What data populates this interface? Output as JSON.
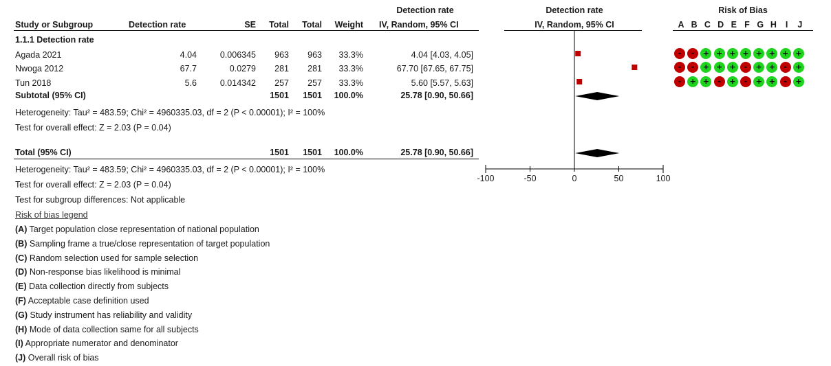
{
  "header": {
    "left_col": "Study or Subgroup",
    "col_rate": "Detection rate",
    "col_se": "SE",
    "col_total1": "Total",
    "col_total2": "Total",
    "col_weight": "Weight",
    "col_effect_top": "Detection rate",
    "col_effect_bottom": "IV, Random, 95% CI",
    "plot_top": "Detection rate",
    "plot_bottom": "IV, Random, 95% CI",
    "rob_title": "Risk of Bias",
    "rob_letters": [
      "A",
      "B",
      "C",
      "D",
      "E",
      "F",
      "G",
      "H",
      "I",
      "J"
    ]
  },
  "subgroup_title": "1.1.1 Detection rate",
  "studies": [
    {
      "name": "Agada 2021",
      "rate": "4.04",
      "se": "0.006345",
      "total1": "963",
      "total2": "963",
      "weight": "33.3%",
      "ci": "4.04 [4.03, 4.05]",
      "rob": [
        "-",
        "-",
        "+",
        "+",
        "+",
        "+",
        "+",
        "+",
        "+",
        "+"
      ]
    },
    {
      "name": "Nwoga 2012",
      "rate": "67.7",
      "se": "0.0279",
      "total1": "281",
      "total2": "281",
      "weight": "33.3%",
      "ci": "67.70 [67.65, 67.75]",
      "rob": [
        "-",
        "-",
        "+",
        "+",
        "+",
        "-",
        "+",
        "+",
        "-",
        "+"
      ]
    },
    {
      "name": "Tun 2018",
      "rate": "5.6",
      "se": "0.014342",
      "total1": "257",
      "total2": "257",
      "weight": "33.3%",
      "ci": "5.60 [5.57, 5.63]",
      "rob": [
        "-",
        "+",
        "+",
        "-",
        "+",
        "-",
        "+",
        "+",
        "-",
        "+"
      ]
    }
  ],
  "subtotal": {
    "label": "Subtotal (95% CI)",
    "total1": "1501",
    "total2": "1501",
    "weight": "100.0%",
    "ci": "25.78 [0.90, 50.66]"
  },
  "subtotal_heterogeneity": "Heterogeneity: Tau² = 483.59; Chi² = 4960335.03, df = 2 (P < 0.00001); I² = 100%",
  "subtotal_overall": "Test for overall effect: Z = 2.03 (P = 0.04)",
  "total": {
    "label": "Total (95% CI)",
    "total1": "1501",
    "total2": "1501",
    "weight": "100.0%",
    "ci": "25.78 [0.90, 50.66]"
  },
  "total_heterogeneity": "Heterogeneity: Tau² = 483.59; Chi² = 4960335.03, df = 2 (P < 0.00001); I² = 100%",
  "total_overall": "Test for overall effect: Z = 2.03 (P = 0.04)",
  "subgroup_diff": "Test for subgroup differences: Not applicable",
  "legend": {
    "title": "Risk of bias legend",
    "items": [
      {
        "key": "(A)",
        "text": " Target population close representation of national population"
      },
      {
        "key": "(B)",
        "text": " Sampling frame a true/close representation of target population"
      },
      {
        "key": "(C)",
        "text": " Random selection used for sample selection"
      },
      {
        "key": "(D)",
        "text": " Non-response bias likelihood is minimal"
      },
      {
        "key": "(E)",
        "text": " Data collection directly from subjects"
      },
      {
        "key": "(F)",
        "text": " Acceptable case definition used"
      },
      {
        "key": "(G)",
        "text": " Study instrument has reliability and validity"
      },
      {
        "key": "(H)",
        "text": " Mode of data collection same for all subjects"
      },
      {
        "key": "(I)",
        "text": " Appropriate numerator and denominator"
      },
      {
        "key": "(J)",
        "text": " Overall risk of bias"
      }
    ]
  },
  "colors": {
    "point": "#c00000",
    "diamond": "#000000",
    "rob_low": "#1fd31f",
    "rob_high": "#c00000"
  },
  "chart_data": {
    "type": "scatter",
    "subtype": "forest-plot",
    "xlim": [
      -100,
      100
    ],
    "xticks": [
      -100,
      -50,
      0,
      50,
      100
    ],
    "tick_labels": [
      "-100",
      "-50",
      "0",
      "50",
      "100"
    ],
    "studies": [
      {
        "name": "Agada 2021",
        "estimate": 4.04,
        "ci": [
          4.03,
          4.05
        ],
        "weight": 33.3
      },
      {
        "name": "Nwoga 2012",
        "estimate": 67.7,
        "ci": [
          67.65,
          67.75
        ],
        "weight": 33.3
      },
      {
        "name": "Tun 2018",
        "estimate": 5.6,
        "ci": [
          5.57,
          5.63
        ],
        "weight": 33.3
      }
    ],
    "pooled": [
      {
        "name": "Subtotal (95% CI)",
        "estimate": 25.78,
        "ci": [
          0.9,
          50.66
        ]
      },
      {
        "name": "Total (95% CI)",
        "estimate": 25.78,
        "ci": [
          0.9,
          50.66
        ]
      }
    ]
  }
}
